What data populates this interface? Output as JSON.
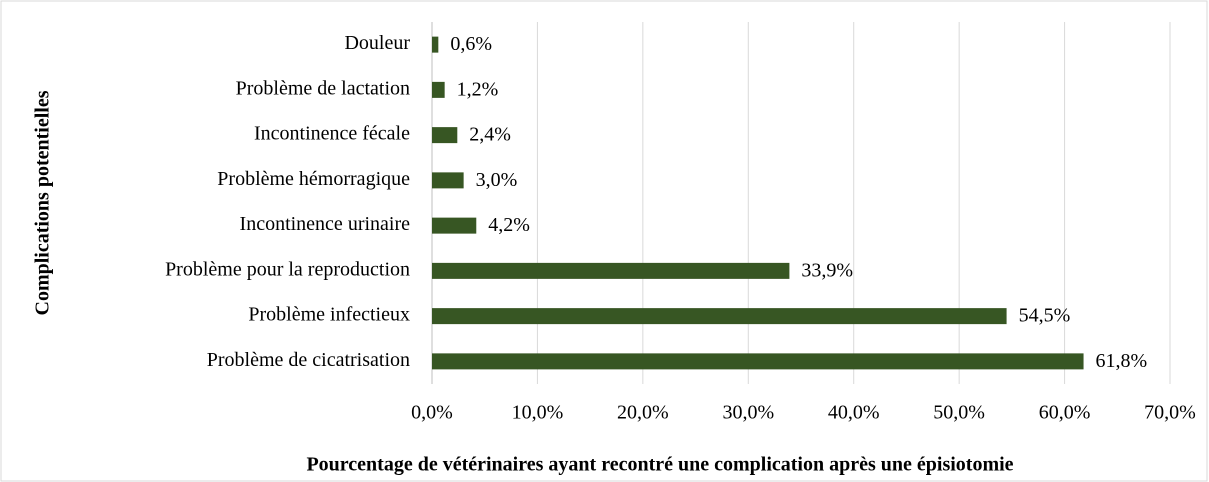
{
  "chart_data": {
    "type": "bar",
    "orientation": "horizontal",
    "xlabel": "Pourcentage de vétérinaires ayant recontré une complication après une épisiotomie",
    "ylabel": "Complications potentielles",
    "categories": [
      "Douleur",
      "Problème de lactation",
      "Incontinence fécale",
      "Problème hémorragique",
      "Incontinence urinaire",
      "Problème pour la reproduction",
      "Problème infectieux",
      "Problème de cicatrisation"
    ],
    "values": [
      0.6,
      1.2,
      2.4,
      3.0,
      4.2,
      33.9,
      54.5,
      61.8
    ],
    "value_labels": [
      "0,6%",
      "1,2%",
      "2,4%",
      "3,0%",
      "4,2%",
      "33,9%",
      "54,5%",
      "61,8%"
    ],
    "color": "#375623",
    "xlim": [
      0,
      70
    ],
    "xticks": [
      {
        "value": 0,
        "label": "0,0%"
      },
      {
        "value": 10,
        "label": "10,0%"
      },
      {
        "value": 20,
        "label": "20,0%"
      },
      {
        "value": 30,
        "label": "30,0%"
      },
      {
        "value": 40,
        "label": "40,0%"
      },
      {
        "value": 50,
        "label": "50,0%"
      },
      {
        "value": 60,
        "label": "60,0%"
      },
      {
        "value": 70,
        "label": "70,0%"
      }
    ],
    "grid": true
  }
}
